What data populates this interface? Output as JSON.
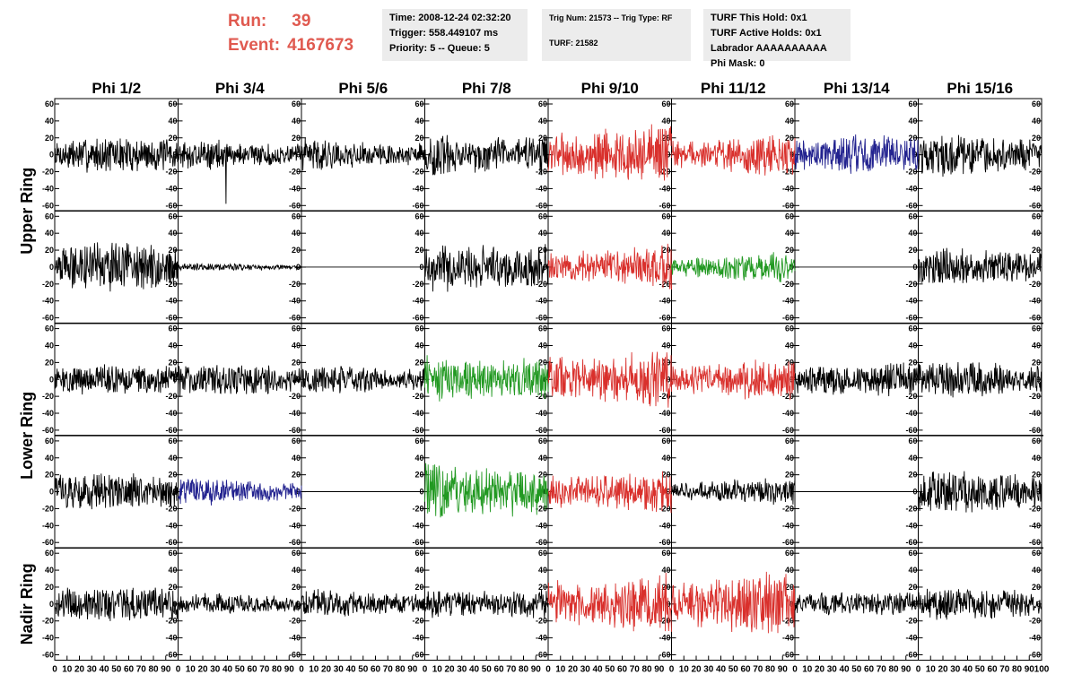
{
  "header": {
    "run_label": "Run:",
    "run_value": "39",
    "event_label": "Event:",
    "event_value": "4167673"
  },
  "time_box": {
    "time": "Time: 2008-12-24 02:32:20",
    "trigger": "Trigger: 558.449107 ms",
    "priority": "Priority: 5 -- Queue: 5"
  },
  "trig_box": {
    "trig_line": "Trig Num: 21573 -- Trig Type: RF",
    "turf_line": "TURF: 21582"
  },
  "turf_box": {
    "this_hold": "TURF This Hold: 0x1",
    "active_holds": "TURF Active Holds: 0x1",
    "labrador": "Labrador AAAAAAAAAA",
    "phi_mask": "Phi Mask: 0"
  },
  "colors": {
    "black": "#000000",
    "red": "#d9302c",
    "green": "#229922",
    "blue": "#22228f",
    "header_red": "#e05a50",
    "info_bg": "#ececec"
  },
  "chart_data": {
    "type": "line",
    "columns": [
      "Phi 1/2",
      "Phi 3/4",
      "Phi 5/6",
      "Phi 7/8",
      "Phi 9/10",
      "Phi 11/12",
      "Phi 13/14",
      "Phi 15/16"
    ],
    "group_labels": [
      "Upper Ring",
      "Lower Ring",
      "Nadir Ring"
    ],
    "xlim": [
      0,
      100
    ],
    "ylim": [
      -60,
      60
    ],
    "x_ticks": [
      0,
      10,
      20,
      30,
      40,
      50,
      60,
      70,
      80,
      90,
      100
    ],
    "x_tick_labels": [
      "0",
      "10",
      "20",
      "30",
      "40",
      "50",
      "60",
      "70",
      "80",
      "90",
      "100"
    ],
    "y_ticks": [
      -60,
      -40,
      -20,
      0,
      20,
      40,
      60
    ],
    "y_tick_labels": [
      "-60",
      "-40",
      "-20",
      "0",
      "20",
      "40",
      "60"
    ],
    "rows": [
      {
        "traces": [
          {
            "color": "black",
            "amplitude": 15
          },
          {
            "color": "black",
            "amplitude": 12,
            "spike": [
              39,
              -58
            ]
          },
          {
            "color": "black",
            "amplitude": 14
          },
          {
            "color": "black",
            "amplitude": 22
          },
          {
            "color": "red",
            "amplitude": 30
          },
          {
            "color": "red",
            "amplitude": 17
          },
          {
            "color": "blue",
            "amplitude": 16
          },
          {
            "color": "black",
            "amplitude": 17
          }
        ]
      },
      {
        "traces": [
          {
            "color": "black",
            "amplitude": 20
          },
          {
            "color": "black",
            "amplitude": 3
          },
          {
            "color": "black",
            "amplitude": 0
          },
          {
            "color": "black",
            "amplitude": 27
          },
          {
            "color": "red",
            "amplitude": 20
          },
          {
            "color": "green",
            "amplitude": 12
          },
          {
            "color": "black",
            "amplitude": 0
          },
          {
            "color": "black",
            "amplitude": 16
          }
        ]
      },
      {
        "traces": [
          {
            "color": "black",
            "amplitude": 13
          },
          {
            "color": "black",
            "amplitude": 14
          },
          {
            "color": "black",
            "amplitude": 14
          },
          {
            "color": "green",
            "amplitude": 24
          },
          {
            "color": "red",
            "amplitude": 28
          },
          {
            "color": "red",
            "amplitude": 17
          },
          {
            "color": "black",
            "amplitude": 14
          },
          {
            "color": "black",
            "amplitude": 15
          }
        ]
      },
      {
        "traces": [
          {
            "color": "black",
            "amplitude": 16
          },
          {
            "color": "blue",
            "amplitude": 11
          },
          {
            "color": "black",
            "amplitude": 0
          },
          {
            "color": "green",
            "amplitude": 30
          },
          {
            "color": "red",
            "amplitude": 20
          },
          {
            "color": "black",
            "amplitude": 11
          },
          {
            "color": "black",
            "amplitude": 0
          },
          {
            "color": "black",
            "amplitude": 18
          }
        ]
      },
      {
        "traces": [
          {
            "color": "black",
            "amplitude": 15
          },
          {
            "color": "black",
            "amplitude": 9
          },
          {
            "color": "black",
            "amplitude": 13
          },
          {
            "color": "black",
            "amplitude": 16
          },
          {
            "color": "red",
            "amplitude": 28
          },
          {
            "color": "red",
            "amplitude": 26
          },
          {
            "color": "black",
            "amplitude": 10
          },
          {
            "color": "black",
            "amplitude": 14
          }
        ]
      }
    ]
  }
}
